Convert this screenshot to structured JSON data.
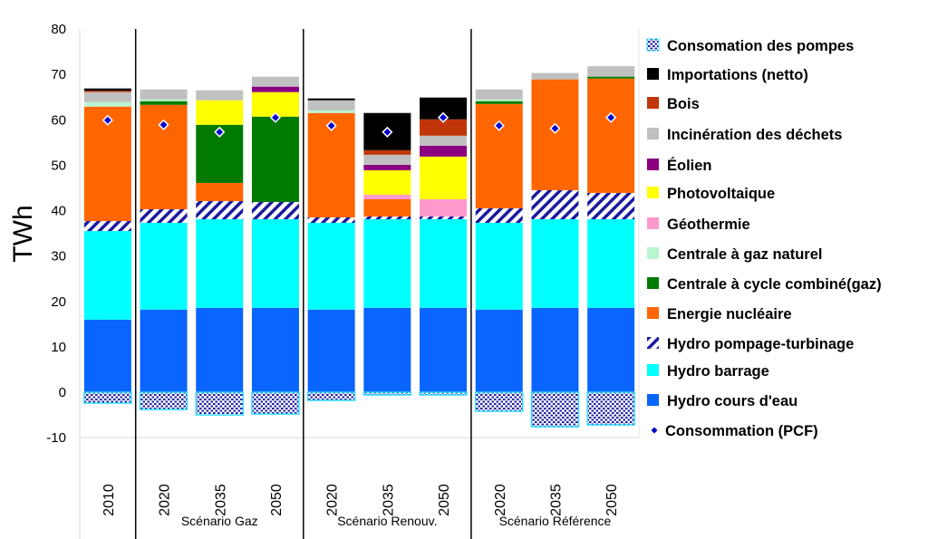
{
  "chart_data": {
    "type": "bar",
    "stacked": true,
    "title": "",
    "xlabel": "",
    "ylabel": "TWh",
    "ylim": [
      -10,
      80
    ],
    "yticks": [
      -10,
      0,
      10,
      20,
      30,
      40,
      50,
      60,
      70,
      80
    ],
    "grid": false,
    "legend_position": "right",
    "categories": [
      "2010",
      "2020",
      "2035",
      "2050",
      "2020",
      "2035",
      "2050",
      "2020",
      "2035",
      "2050"
    ],
    "groups": [
      {
        "label": "",
        "categories": [
          0
        ]
      },
      {
        "label": "Scénario Gaz",
        "categories": [
          1,
          2,
          3
        ]
      },
      {
        "label": "Scénario Renouv.",
        "categories": [
          4,
          5,
          6
        ]
      },
      {
        "label": "Scénario Référence",
        "categories": [
          7,
          8,
          9
        ]
      }
    ],
    "series": [
      {
        "name": "Hydro cours d'eau",
        "color": "#0a64ff",
        "values": [
          16,
          18.2,
          18.6,
          18.6,
          18.2,
          18.6,
          18.6,
          18.2,
          18.6,
          18.6
        ]
      },
      {
        "name": "Hydro barrage",
        "color": "#00ffff",
        "values": [
          19.5,
          19.1,
          19.5,
          19.5,
          19.1,
          19.5,
          19.5,
          19.1,
          19.5,
          19.5
        ]
      },
      {
        "name": "Hydro pompage-turbinage",
        "color": "#1a1aa0",
        "pattern": "stripes",
        "values": [
          2.2,
          3.0,
          4.0,
          3.8,
          1.2,
          0.6,
          0.6,
          3.2,
          6.4,
          5.8
        ]
      },
      {
        "name": "Energie nucléaire",
        "color": "#ff6600",
        "values": [
          25.2,
          23,
          4,
          0,
          23,
          3.8,
          0,
          23,
          24.4,
          25.2
        ]
      },
      {
        "name": "Centrale à cycle combiné(gaz)",
        "color": "#007a00",
        "values": [
          0,
          0.8,
          12.8,
          18.8,
          0,
          0,
          0,
          0.6,
          0,
          0.4
        ]
      },
      {
        "name": "Centrale à gaz naturel",
        "color": "#b8f5d0",
        "values": [
          1.0,
          0.4,
          0,
          0,
          0.6,
          0,
          0,
          0.4,
          0,
          0
        ]
      },
      {
        "name": "Géothermie",
        "color": "#ff99cc",
        "values": [
          0,
          0,
          0,
          0,
          0,
          1.0,
          3.8,
          0,
          0,
          0
        ]
      },
      {
        "name": "Photovoltaique",
        "color": "#ffff00",
        "values": [
          0,
          0,
          5.4,
          5.4,
          0,
          5.4,
          9.4,
          0,
          0,
          0
        ]
      },
      {
        "name": "Éolien",
        "color": "#8b0080",
        "values": [
          0,
          0,
          0,
          1.2,
          0,
          1.2,
          2.4,
          0,
          0,
          0
        ]
      },
      {
        "name": "Incinération des déchets",
        "color": "#c0c0c0",
        "values": [
          2.2,
          2.2,
          2.2,
          2.2,
          2.2,
          2.2,
          2.2,
          2.2,
          1.4,
          2.3
        ]
      },
      {
        "name": "Bois",
        "color": "#c0360a",
        "values": [
          0.3,
          0,
          0,
          0,
          0,
          1.0,
          3.6,
          0,
          0,
          0
        ]
      },
      {
        "name": "Importations (netto)",
        "color": "#000000",
        "values": [
          0.5,
          0,
          0,
          0,
          0.4,
          8.2,
          4.8,
          0,
          0,
          0
        ]
      },
      {
        "name": "Consomation des pompes",
        "color": "#1a1aa0",
        "border": "#33ddff",
        "pattern": "dots",
        "values": [
          -2.4,
          -3.8,
          -5,
          -4.8,
          -1.8,
          -0.6,
          -0.6,
          -4.2,
          -7.6,
          -7.2
        ]
      }
    ],
    "markers": {
      "name": "Consommation (PCF)",
      "color": "#0000cc",
      "values": [
        59.9,
        58.9,
        57.3,
        60.5,
        58.7,
        57.3,
        60.5,
        58.7,
        58.1,
        60.5
      ]
    },
    "legend_order": [
      "Consomation des pompes",
      "Importations (netto)",
      "Bois",
      "Incinération des déchets",
      "Éolien",
      "Photovoltaique",
      "Géothermie",
      "Centrale à gaz naturel",
      "Centrale à cycle combiné(gaz)",
      "Energie nucléaire",
      "Hydro pompage-turbinage",
      "Hydro barrage",
      "Hydro cours d'eau",
      "Consommation (PCF)"
    ]
  }
}
